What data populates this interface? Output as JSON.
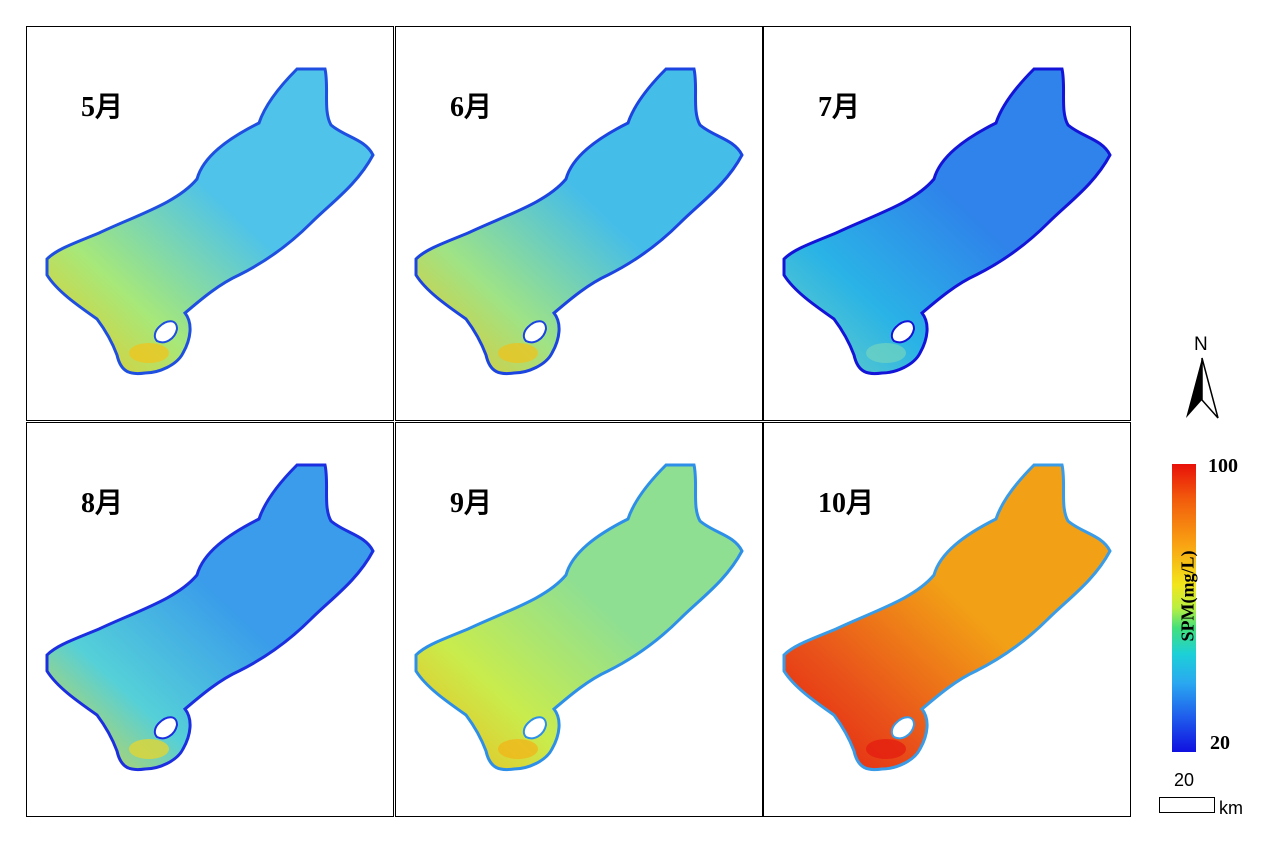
{
  "panels": [
    {
      "label": "5月",
      "colors": {
        "main": "#4fc3e9",
        "tint": "#a7e879",
        "edge": "#1f4fe0",
        "hot": "#f0c41c"
      }
    },
    {
      "label": "6月",
      "colors": {
        "main": "#45bde9",
        "tint": "#9fe386",
        "edge": "#1c44e0",
        "hot": "#eec31e"
      }
    },
    {
      "label": "7月",
      "colors": {
        "main": "#2f83ea",
        "tint": "#2ab3e6",
        "edge": "#1414d8",
        "hot": "#6fd3c0"
      }
    },
    {
      "label": "8月",
      "colors": {
        "main": "#3a9cea",
        "tint": "#55d0d8",
        "edge": "#1c2fe0",
        "hot": "#e7d52c"
      }
    },
    {
      "label": "9月",
      "colors": {
        "main": "#8fdf92",
        "tint": "#c9ec4c",
        "edge": "#2e8fe8",
        "hot": "#f2b418"
      }
    },
    {
      "label": "10月",
      "colors": {
        "main": "#f2a116",
        "tint": "#e9541a",
        "edge": "#3a9be6",
        "hot": "#e41c10"
      }
    }
  ],
  "north_arrow": {
    "letter": "N"
  },
  "colorbar": {
    "title": "SPM(mg/L)",
    "max": "100",
    "min": "20"
  },
  "scale_bar": {
    "value": "20",
    "unit": "km"
  }
}
